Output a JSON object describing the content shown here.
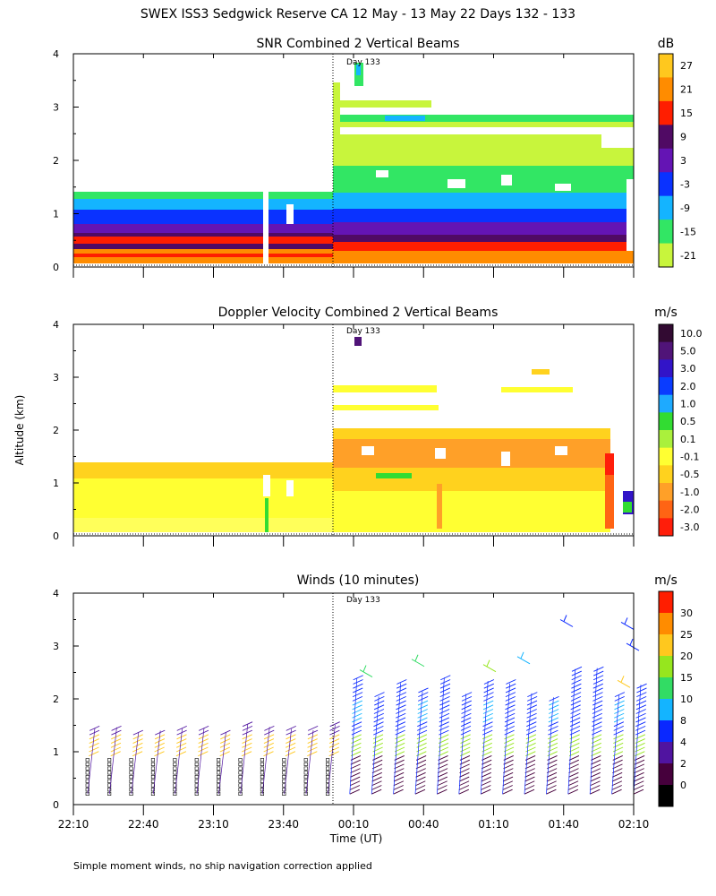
{
  "page": {
    "title": "SWEX ISS3 Sedgwick Reserve CA  12 May - 13 May 22 Days 132 - 133",
    "ylabel": "Altitude (km)",
    "xlabel": "Time (UT)",
    "footnote": "Simple moment winds, no ship navigation correction applied",
    "day_marker": "Day 133"
  },
  "chart_data": [
    {
      "type": "heatmap",
      "title": "SNR Combined 2 Vertical Beams",
      "unit": "dB",
      "ylim": [
        0,
        4
      ],
      "yticks": [
        "0",
        "1",
        "2",
        "3",
        "4"
      ],
      "xticks": [
        "22:10",
        "22:40",
        "23:10",
        "23:40",
        "00:10",
        "00:40",
        "01:10",
        "01:40",
        "02:10"
      ],
      "colorbar": {
        "labels": [
          "27",
          "21",
          "15",
          "9",
          "3",
          "-3",
          "-9",
          "-15",
          "-21"
        ],
        "colors": [
          "#ffc81e",
          "#ff8c00",
          "#ff1e00",
          "#500a64",
          "#6414b4",
          "#0a32ff",
          "#14b4ff",
          "#32e664",
          "#c8f53c"
        ]
      }
    },
    {
      "type": "heatmap",
      "title": "Doppler Velocity Combined 2 Vertical Beams",
      "unit": "m/s",
      "ylim": [
        0,
        4
      ],
      "yticks": [
        "0",
        "1",
        "2",
        "3",
        "4"
      ],
      "xticks": [],
      "colorbar": {
        "labels": [
          "10.0",
          "5.0",
          "3.0",
          "2.0",
          "1.0",
          "0.5",
          "0.1",
          "-0.1",
          "-0.5",
          "-1.0",
          "-2.0",
          "-3.0"
        ],
        "colors": [
          "#320a32",
          "#501478",
          "#3214c8",
          "#0a3cff",
          "#1eaaff",
          "#32dc32",
          "#aaf03c",
          "#ffff32",
          "#ffd21e",
          "#ffa028",
          "#ff6414",
          "#ff1e0a"
        ]
      }
    },
    {
      "type": "scatter",
      "title": "Winds (10 minutes)",
      "unit": "m/s",
      "ylim": [
        0,
        4
      ],
      "yticks": [
        "0",
        "1",
        "2",
        "3",
        "4"
      ],
      "xticks": [
        "22:10",
        "22:40",
        "23:10",
        "23:40",
        "00:10",
        "00:40",
        "01:10",
        "01:40",
        "02:10"
      ],
      "colorbar": {
        "labels": [
          "30",
          "25",
          "20",
          "15",
          "10",
          "8",
          "4",
          "2",
          "0"
        ],
        "colors": [
          "#ff1e00",
          "#ff8c00",
          "#ffc81e",
          "#96e61e",
          "#32dc64",
          "#14b4ff",
          "#0a28ff",
          "#5014a0",
          "#46003c",
          "#000000"
        ]
      }
    }
  ]
}
